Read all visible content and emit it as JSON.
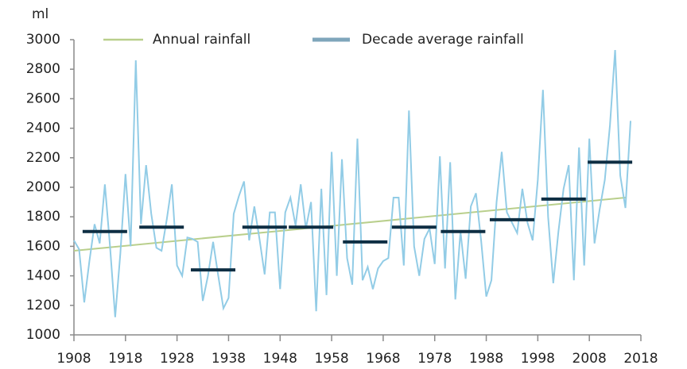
{
  "chart_data": {
    "type": "line",
    "y_unit_label": "ml",
    "x": [
      1908,
      1909,
      1910,
      1911,
      1912,
      1913,
      1914,
      1915,
      1916,
      1917,
      1918,
      1919,
      1920,
      1921,
      1922,
      1923,
      1924,
      1925,
      1926,
      1927,
      1928,
      1929,
      1930,
      1931,
      1932,
      1933,
      1934,
      1935,
      1936,
      1937,
      1938,
      1939,
      1940,
      1941,
      1942,
      1943,
      1944,
      1945,
      1946,
      1947,
      1948,
      1949,
      1950,
      1951,
      1952,
      1953,
      1954,
      1955,
      1956,
      1957,
      1958,
      1959,
      1960,
      1961,
      1962,
      1963,
      1964,
      1965,
      1966,
      1967,
      1968,
      1969,
      1970,
      1971,
      1972,
      1973,
      1974,
      1975,
      1976,
      1977,
      1978,
      1979,
      1980,
      1981,
      1982,
      1983,
      1984,
      1985,
      1986,
      1987,
      1988,
      1989,
      1990,
      1991,
      1992,
      1993,
      1994,
      1995,
      1996,
      1997,
      1998,
      1999,
      2000,
      2001,
      2002,
      2003,
      2004,
      2005,
      2006,
      2007,
      2008,
      2009,
      2010,
      2011,
      2012,
      2013,
      2014,
      2015,
      2016
    ],
    "series": [
      {
        "name": "Annual rainfall",
        "color": "#92cce6",
        "legend_color": "#b9cf8c",
        "values": [
          1640,
          1580,
          1220,
          1500,
          1750,
          1620,
          2020,
          1600,
          1120,
          1550,
          2090,
          1600,
          2860,
          1750,
          2150,
          1820,
          1590,
          1570,
          1780,
          2020,
          1470,
          1400,
          1660,
          1650,
          1630,
          1230,
          1400,
          1630,
          1400,
          1180,
          1250,
          1820,
          1940,
          2040,
          1640,
          1870,
          1650,
          1410,
          1830,
          1830,
          1310,
          1830,
          1930,
          1740,
          2020,
          1720,
          1900,
          1160,
          1990,
          1270,
          2240,
          1400,
          2190,
          1520,
          1340,
          2330,
          1370,
          1460,
          1310,
          1450,
          1500,
          1520,
          1930,
          1930,
          1470,
          2520,
          1600,
          1400,
          1650,
          1720,
          1480,
          2210,
          1450,
          2170,
          1240,
          1700,
          1380,
          1870,
          1960,
          1640,
          1260,
          1370,
          1900,
          2240,
          1830,
          1760,
          1690,
          1990,
          1760,
          1640,
          2050,
          2660,
          1800,
          1350,
          1700,
          1990,
          2150,
          1370,
          2270,
          1470,
          2330,
          1620,
          1850,
          2050,
          2420,
          2930,
          2080,
          1860,
          2450
        ]
      },
      {
        "name": "Decade average rainfall",
        "color": "#0e2e43",
        "legend_color": "#7fa6bb",
        "x": [
          1914,
          1925,
          1935,
          1945,
          1954,
          1964.5,
          1974,
          1983.5,
          1993,
          2003,
          2012
        ],
        "values": [
          1700,
          1730,
          1440,
          1730,
          1730,
          1630,
          1730,
          1700,
          1780,
          1920,
          2170
        ]
      }
    ],
    "trend": {
      "color": "#b9cf8c",
      "x": [
        1908,
        2015
      ],
      "values": [
        1570,
        1930
      ]
    },
    "xlim": [
      1908,
      2018
    ],
    "xticks": [
      1908,
      1918,
      1928,
      1938,
      1948,
      1958,
      1968,
      1978,
      1988,
      1998,
      2008,
      2018
    ],
    "ylim": [
      1000,
      3000
    ],
    "yticks": [
      1000,
      1200,
      1400,
      1600,
      1800,
      2000,
      2200,
      2400,
      2600,
      2800,
      3000
    ],
    "grid": false
  }
}
